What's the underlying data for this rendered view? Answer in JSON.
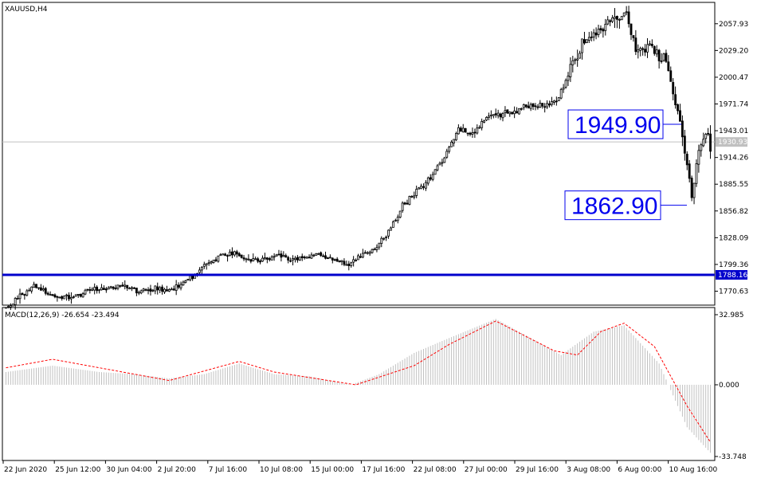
{
  "chart_data": [
    {
      "type": "candlestick",
      "title": "XAUUSD,H4",
      "symbol": "XAUUSD",
      "timeframe": "H4",
      "ylim": [
        1756.5,
        2080.0
      ],
      "y_ticks": [
        "2057.93",
        "2029.20",
        "2000.47",
        "1971.74",
        "1943.01",
        "1914.26",
        "1885.55",
        "1856.82",
        "1828.09",
        "1799.36",
        "1770.63"
      ],
      "x_ticks": [
        "22 Jun 2020",
        "25 Jun 12:00",
        "30 Jun 04:00",
        "2 Jul 20:00",
        "7 Jul 16:00",
        "10 Jul 08:00",
        "15 Jul 00:00",
        "17 Jul 16:00",
        "22 Jul 08:00",
        "27 Jul 00:00",
        "29 Jul 16:00",
        "3 Aug 08:00",
        "6 Aug 00:00",
        "10 Aug 16:00"
      ],
      "current_price": "1930.93",
      "current_price_value": 1930.93,
      "horizontal_line": {
        "label": "1788.16",
        "value": 1788.16,
        "color": "#0000cc"
      },
      "annotations": [
        {
          "text": "1949.90",
          "value": 1949.9
        },
        {
          "text": "1862.90",
          "value": 1862.9
        }
      ],
      "price_path": [
        {
          "i": 0,
          "p": 1752
        },
        {
          "i": 8,
          "p": 1768
        },
        {
          "i": 12,
          "p": 1777
        },
        {
          "i": 20,
          "p": 1766
        },
        {
          "i": 28,
          "p": 1763
        },
        {
          "i": 36,
          "p": 1772
        },
        {
          "i": 44,
          "p": 1774
        },
        {
          "i": 50,
          "p": 1778
        },
        {
          "i": 56,
          "p": 1771
        },
        {
          "i": 62,
          "p": 1774
        },
        {
          "i": 70,
          "p": 1772
        },
        {
          "i": 76,
          "p": 1780
        },
        {
          "i": 80,
          "p": 1786
        },
        {
          "i": 86,
          "p": 1800
        },
        {
          "i": 92,
          "p": 1810
        },
        {
          "i": 98,
          "p": 1812
        },
        {
          "i": 104,
          "p": 1804
        },
        {
          "i": 110,
          "p": 1803
        },
        {
          "i": 116,
          "p": 1808
        },
        {
          "i": 122,
          "p": 1805
        },
        {
          "i": 128,
          "p": 1807
        },
        {
          "i": 134,
          "p": 1811
        },
        {
          "i": 140,
          "p": 1805
        },
        {
          "i": 146,
          "p": 1800
        },
        {
          "i": 152,
          "p": 1808
        },
        {
          "i": 158,
          "p": 1814
        },
        {
          "i": 164,
          "p": 1836
        },
        {
          "i": 170,
          "p": 1862
        },
        {
          "i": 176,
          "p": 1878
        },
        {
          "i": 182,
          "p": 1893
        },
        {
          "i": 188,
          "p": 1915
        },
        {
          "i": 194,
          "p": 1945
        },
        {
          "i": 200,
          "p": 1938
        },
        {
          "i": 206,
          "p": 1958
        },
        {
          "i": 212,
          "p": 1960
        },
        {
          "i": 218,
          "p": 1964
        },
        {
          "i": 224,
          "p": 1970
        },
        {
          "i": 230,
          "p": 1970
        },
        {
          "i": 236,
          "p": 1973
        },
        {
          "i": 242,
          "p": 2010
        },
        {
          "i": 248,
          "p": 2040
        },
        {
          "i": 254,
          "p": 2050
        },
        {
          "i": 260,
          "p": 2065
        },
        {
          "i": 266,
          "p": 2068
        },
        {
          "i": 270,
          "p": 2030
        },
        {
          "i": 276,
          "p": 2033
        },
        {
          "i": 282,
          "p": 2020
        },
        {
          "i": 286,
          "p": 1985
        },
        {
          "i": 290,
          "p": 1937
        },
        {
          "i": 294,
          "p": 1875
        },
        {
          "i": 298,
          "p": 1933
        },
        {
          "i": 300,
          "p": 1944
        },
        {
          "i": 302,
          "p": 1927
        }
      ],
      "indicator": {
        "name": "MACD(12,26,9)",
        "label": "MACD(12,26,9) -26.654 -23.494",
        "macd": "-26.654",
        "signal": "-23.494",
        "ylim": [
          -33.748,
          32.985
        ],
        "y_ticks": [
          "32.985",
          "0.000",
          "-33.748"
        ],
        "histogram_color": "#c0c0c0",
        "signal_color": "#ff0000",
        "macd_path": [
          {
            "i": 0,
            "v": 6
          },
          {
            "i": 20,
            "v": 9
          },
          {
            "i": 40,
            "v": 6
          },
          {
            "i": 55,
            "v": 5
          },
          {
            "i": 70,
            "v": 3
          },
          {
            "i": 85,
            "v": 5
          },
          {
            "i": 100,
            "v": 10
          },
          {
            "i": 115,
            "v": 5
          },
          {
            "i": 130,
            "v": 4
          },
          {
            "i": 148,
            "v": 0
          },
          {
            "i": 160,
            "v": 5
          },
          {
            "i": 175,
            "v": 15
          },
          {
            "i": 190,
            "v": 22
          },
          {
            "i": 210,
            "v": 31
          },
          {
            "i": 225,
            "v": 22
          },
          {
            "i": 238,
            "v": 14
          },
          {
            "i": 252,
            "v": 25
          },
          {
            "i": 265,
            "v": 28
          },
          {
            "i": 280,
            "v": 10
          },
          {
            "i": 292,
            "v": -20
          },
          {
            "i": 302,
            "v": -32
          }
        ],
        "signal_path": [
          {
            "i": 0,
            "v": 8
          },
          {
            "i": 20,
            "v": 12
          },
          {
            "i": 40,
            "v": 8
          },
          {
            "i": 70,
            "v": 2
          },
          {
            "i": 100,
            "v": 11
          },
          {
            "i": 115,
            "v": 6
          },
          {
            "i": 150,
            "v": 0
          },
          {
            "i": 175,
            "v": 9
          },
          {
            "i": 190,
            "v": 19
          },
          {
            "i": 210,
            "v": 30
          },
          {
            "i": 235,
            "v": 16
          },
          {
            "i": 245,
            "v": 14
          },
          {
            "i": 255,
            "v": 25
          },
          {
            "i": 265,
            "v": 29
          },
          {
            "i": 278,
            "v": 18
          },
          {
            "i": 292,
            "v": -10
          },
          {
            "i": 302,
            "v": -27
          }
        ]
      }
    }
  ]
}
